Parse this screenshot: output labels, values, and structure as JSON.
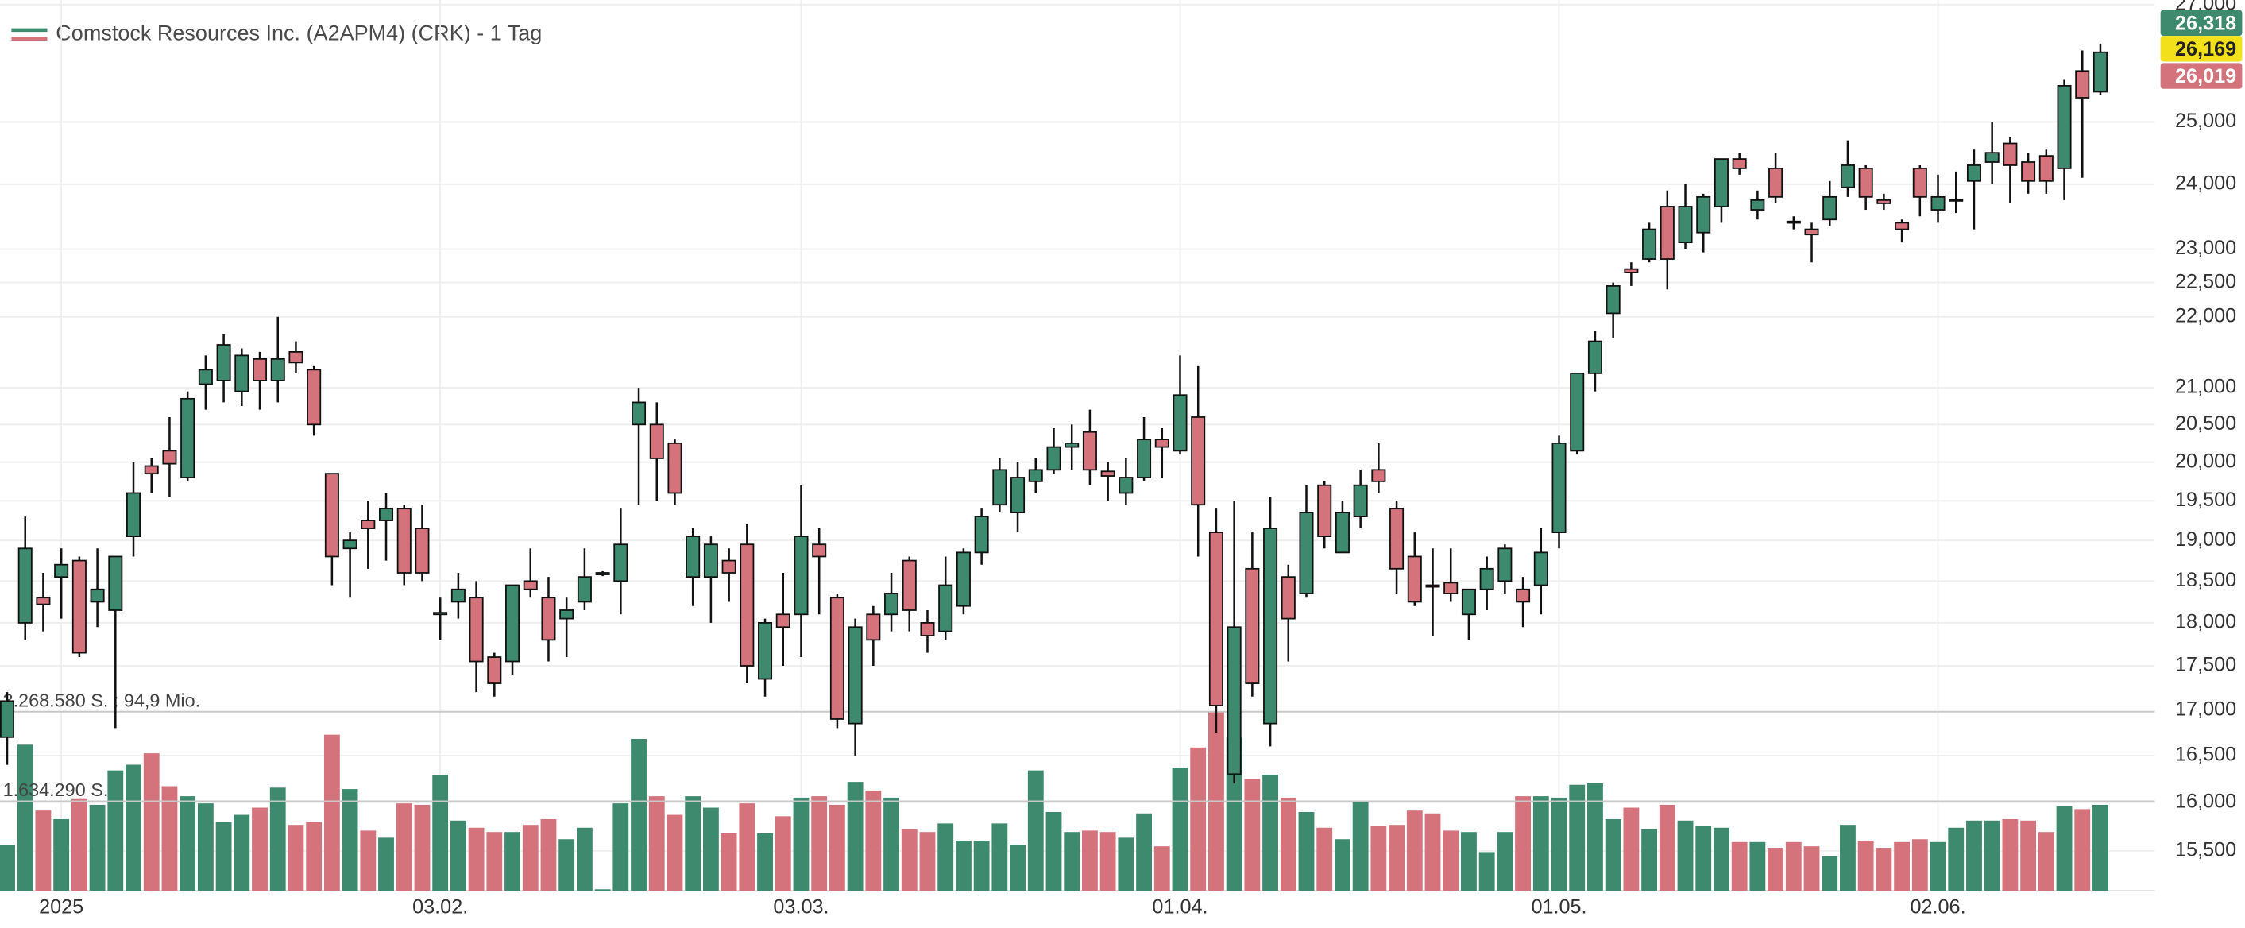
{
  "chart_data": {
    "type": "candlestick",
    "title": "Comstock Resources Inc. (A2APM4) (CRK) - 1 Tag",
    "log_scale": true,
    "grid": true,
    "up_color": "#3d8a6e",
    "down_color": "#d4737c",
    "ylim": [
      15100,
      27080
    ],
    "yticks": [
      {
        "value": 15500,
        "label": "15,500"
      },
      {
        "value": 16000,
        "label": "16,000"
      },
      {
        "value": 16500,
        "label": "16,500"
      },
      {
        "value": 17000,
        "label": "17,000"
      },
      {
        "value": 17500,
        "label": "17,500"
      },
      {
        "value": 18000,
        "label": "18,000"
      },
      {
        "value": 18500,
        "label": "18,500"
      },
      {
        "value": 19000,
        "label": "19,000"
      },
      {
        "value": 19500,
        "label": "19,500"
      },
      {
        "value": 20000,
        "label": "20,000"
      },
      {
        "value": 20500,
        "label": "20,500"
      },
      {
        "value": 21000,
        "label": "21,000"
      },
      {
        "value": 22000,
        "label": "22,000"
      },
      {
        "value": 22500,
        "label": "22,500"
      },
      {
        "value": 23000,
        "label": "23,000"
      },
      {
        "value": 24000,
        "label": "24,000"
      },
      {
        "value": 25000,
        "label": "25,000"
      },
      {
        "value": 27000,
        "label": "27,000"
      }
    ],
    "xticks": [
      {
        "index": 3,
        "label": "2025"
      },
      {
        "index": 24,
        "label": "03.02."
      },
      {
        "index": 44,
        "label": "03.03."
      },
      {
        "index": 65,
        "label": "01.04."
      },
      {
        "index": 86,
        "label": "01.05."
      },
      {
        "index": 107,
        "label": "02.06."
      }
    ],
    "price_labels": [
      {
        "value": 26318,
        "label": "26,318",
        "color": "#3d8a6e"
      },
      {
        "value": 26169,
        "label": "26,169",
        "color": "#f2e11a"
      },
      {
        "value": 26019,
        "label": "26,019",
        "color": "#d4737c"
      }
    ],
    "volume_lim": [
      0,
      3268580
    ],
    "volume_ticks": [
      {
        "value": 1634290,
        "label": "1.634.290 S."
      },
      {
        "value": 3268580,
        "label": "3.268.580 S. : 94,9 Mio."
      }
    ],
    "open": [
      16700,
      18000,
      18300,
      18550,
      18750,
      18250,
      18150,
      19050,
      19950,
      20150,
      19800,
      21050,
      21100,
      20950,
      21400,
      21100,
      21500,
      21250,
      19850,
      18900,
      19250,
      19250,
      19400,
      19150,
      18100,
      18250,
      18300,
      17600,
      17550,
      18500,
      18300,
      18050,
      18250,
      18580,
      18500,
      20500,
      20500,
      20250,
      18550,
      18550,
      18750,
      18950,
      17350,
      18100,
      18100,
      18950,
      18300,
      16850,
      18100,
      18100,
      18750,
      18000,
      17900,
      18200,
      18850,
      19450,
      19350,
      19750,
      19900,
      20200,
      20400,
      19880,
      19600,
      19800,
      20300,
      20150,
      20600,
      19100,
      16300,
      18650,
      16850,
      18550,
      18350,
      19700,
      18850,
      19300,
      19900,
      19400,
      18800,
      18450,
      18480,
      18100,
      18400,
      18500,
      18400,
      18450,
      19100,
      20150,
      21200,
      22050,
      22700,
      22850,
      23650,
      23100,
      23250,
      23650,
      24400,
      23600,
      24250,
      23420,
      23300,
      23450,
      23950,
      24250,
      23750,
      23400,
      24250,
      23600,
      23750,
      24050,
      24350,
      24650,
      24350,
      24450,
      24250,
      25850,
      25500
    ],
    "high": [
      17200,
      19300,
      18600,
      18900,
      18800,
      18900,
      18800,
      20000,
      20050,
      20600,
      20950,
      21450,
      21750,
      21550,
      21500,
      22000,
      21650,
      21300,
      19850,
      19100,
      19500,
      19600,
      19450,
      19450,
      18300,
      18600,
      18500,
      17650,
      18450,
      18900,
      18550,
      18300,
      18900,
      18620,
      19400,
      21000,
      20800,
      20300,
      19150,
      19050,
      18900,
      19200,
      18050,
      18600,
      19700,
      19150,
      18350,
      18050,
      18200,
      18600,
      18800,
      18150,
      18800,
      18900,
      19400,
      20050,
      20000,
      20050,
      20450,
      20500,
      20700,
      20000,
      20050,
      20600,
      20450,
      21450,
      21300,
      19400,
      19500,
      19100,
      19550,
      18700,
      19700,
      19750,
      19500,
      19900,
      20250,
      19500,
      19100,
      18900,
      18900,
      18400,
      18800,
      18950,
      18550,
      19150,
      20350,
      21200,
      21800,
      22500,
      22800,
      23400,
      23900,
      24000,
      23850,
      24400,
      24500,
      23900,
      24500,
      23500,
      23400,
      24050,
      24700,
      24300,
      23850,
      23450,
      24300,
      24150,
      24200,
      24550,
      25000,
      24750,
      24500,
      24550,
      25700,
      26200,
      26318
    ],
    "low": [
      16400,
      17800,
      17900,
      18050,
      17600,
      17950,
      16800,
      18800,
      19600,
      19550,
      19750,
      20700,
      20800,
      20750,
      20700,
      20800,
      21200,
      20350,
      18450,
      18300,
      18650,
      18750,
      18450,
      18500,
      17800,
      18050,
      17200,
      17150,
      17400,
      18300,
      17550,
      17600,
      18150,
      18560,
      18100,
      19450,
      19500,
      19450,
      18200,
      18000,
      18250,
      17300,
      17150,
      17500,
      17600,
      18100,
      16800,
      16500,
      17500,
      17900,
      17900,
      17650,
      17800,
      18100,
      18700,
      19350,
      19100,
      19600,
      19850,
      19900,
      19700,
      19500,
      19450,
      19750,
      19800,
      20100,
      18800,
      16750,
      16200,
      17150,
      16600,
      17550,
      18300,
      18900,
      18850,
      19150,
      19600,
      18350,
      18200,
      17850,
      18250,
      17800,
      18150,
      18350,
      17950,
      18100,
      18900,
      20100,
      20950,
      21700,
      22450,
      22800,
      22400,
      23000,
      22950,
      23400,
      24150,
      23450,
      23700,
      23300,
      22800,
      23350,
      23800,
      23600,
      23600,
      23100,
      23500,
      23400,
      23550,
      23300,
      24000,
      23700,
      23850,
      23850,
      23750,
      24100,
      25450
    ],
    "close": [
      17100,
      18900,
      18220,
      18700,
      17650,
      18400,
      18800,
      19600,
      19850,
      19980,
      20850,
      21250,
      21600,
      21450,
      21100,
      21400,
      21350,
      20500,
      18800,
      19000,
      19150,
      19400,
      18600,
      18600,
      18120,
      18400,
      17550,
      17300,
      18450,
      18400,
      17800,
      18150,
      18550,
      18600,
      18950,
      20800,
      20050,
      19600,
      19050,
      18950,
      18600,
      17500,
      18000,
      17950,
      19050,
      18800,
      16900,
      17950,
      17800,
      18350,
      18150,
      17850,
      18450,
      18850,
      19300,
      19900,
      19800,
      19900,
      20200,
      20250,
      19900,
      19820,
      19800,
      20300,
      20200,
      20900,
      19450,
      17050,
      17950,
      17300,
      19150,
      18050,
      19350,
      19050,
      19350,
      19700,
      19750,
      18650,
      18250,
      18430,
      18350,
      18400,
      18650,
      18900,
      18250,
      18850,
      20250,
      21200,
      21650,
      22450,
      22650,
      23300,
      22850,
      23650,
      23800,
      24400,
      24250,
      23750,
      23800,
      23400,
      23220,
      23800,
      24300,
      23800,
      23700,
      23300,
      23800,
      23800,
      23760,
      24300,
      24500,
      24300,
      24050,
      24050,
      25600,
      25400,
      26169
    ],
    "volume": [
      837000,
      2667000,
      1464000,
      1307000,
      1674000,
      1569000,
      2197000,
      2301000,
      2510000,
      1909000,
      1726000,
      1595000,
      1255000,
      1386000,
      1517000,
      1883000,
      1203000,
      1255000,
      2850000,
      1857000,
      1098000,
      968000,
      1595000,
      1569000,
      2118000,
      1281000,
      1151000,
      1072000,
      1072000,
      1203000,
      1307000,
      941000,
      1151000,
      26000,
      1595000,
      2772000,
      1726000,
      1386000,
      1726000,
      1517000,
      1046000,
      1595000,
      1046000,
      1360000,
      1700000,
      1726000,
      1569000,
      1987000,
      1830000,
      1700000,
      1124000,
      1072000,
      1229000,
      915000,
      915000,
      1229000,
      837000,
      2197000,
      1438000,
      1072000,
      1098000,
      1072000,
      968000,
      1412000,
      811000,
      2249000,
      2615000,
      3269000,
      2798000,
      2040000,
      2118000,
      1700000,
      1438000,
      1151000,
      941000,
      1647000,
      1177000,
      1203000,
      1464000,
      1412000,
      1098000,
      1072000,
      706000,
      1072000,
      1726000,
      1726000,
      1700000,
      1935000,
      1961000,
      1307000,
      1517000,
      1124000,
      1569000,
      1281000,
      1177000,
      1151000,
      889000,
      889000,
      784000,
      889000,
      811000,
      628000,
      1203000,
      915000,
      784000,
      889000,
      941000,
      889000,
      1151000,
      1281000,
      1281000,
      1307000,
      1281000,
      1072000,
      1543000,
      1490000,
      1569000
    ]
  }
}
